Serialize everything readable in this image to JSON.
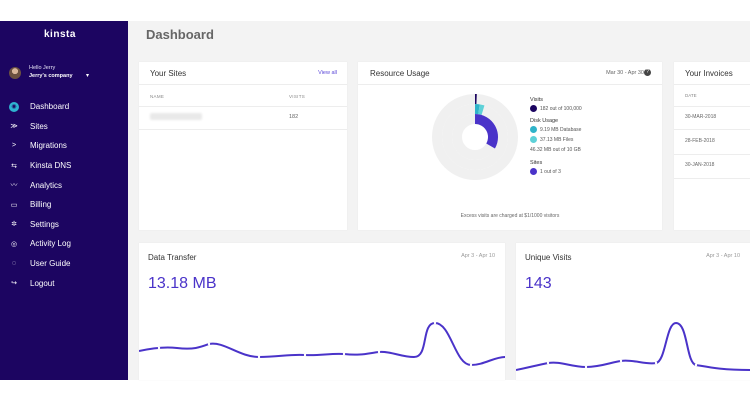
{
  "brand": {
    "logo_text": "kinsta",
    "accent": "#5b48d8",
    "sidebar_bg": "#1c0561"
  },
  "user": {
    "greeting": "Hello Jerry",
    "company": "Jerry's company"
  },
  "nav": [
    {
      "label": "Dashboard",
      "icon": "dashboard-icon",
      "active": true
    },
    {
      "label": "Sites",
      "icon": "sites-icon"
    },
    {
      "label": "Migrations",
      "icon": "migrations-icon"
    },
    {
      "label": "Kinsta DNS",
      "icon": "dns-icon"
    },
    {
      "label": "Analytics",
      "icon": "analytics-icon"
    },
    {
      "label": "Billing",
      "icon": "billing-icon"
    },
    {
      "label": "Settings",
      "icon": "settings-icon"
    },
    {
      "label": "Activity Log",
      "icon": "activity-log-icon"
    },
    {
      "label": "User Guide",
      "icon": "user-guide-icon"
    },
    {
      "label": "Logout",
      "icon": "logout-icon"
    }
  ],
  "page": {
    "title": "Dashboard"
  },
  "sites": {
    "title": "Your Sites",
    "view_all": "View all",
    "col_name": "NAME",
    "col_visits": "VISITS",
    "rows": [
      {
        "visits": "182"
      }
    ]
  },
  "resource": {
    "title": "Resource Usage",
    "date": "Mar 30 - Apr 30",
    "visits_head": "Visits",
    "visits_text": "182 out of 100,000",
    "disk_head": "Disk Usage",
    "disk_db": "9.19 MB Database",
    "disk_files": "37.13 MB Files",
    "disk_total": "46.32 MB out of 10 GB",
    "sites_head": "Sites",
    "sites_text": "1 out of 3",
    "footnote": "Excess visits are charged at $1/1000 visitors",
    "colors": {
      "visits": "#1c0561",
      "database": "#2fb3c9",
      "files": "#5ed1d8",
      "sites": "#4a33c9"
    }
  },
  "invoices": {
    "title": "Your Invoices",
    "col_date": "DATE",
    "dates": [
      "30-MAR-2018",
      "28-FEB-2018",
      "30-JAN-2018"
    ]
  },
  "transfer": {
    "title": "Data Transfer",
    "date": "Apr 3 - Apr 10",
    "value": "13.18 MB"
  },
  "unique": {
    "title": "Unique Visits",
    "date": "Apr 3 - Apr 10",
    "value": "143"
  }
}
